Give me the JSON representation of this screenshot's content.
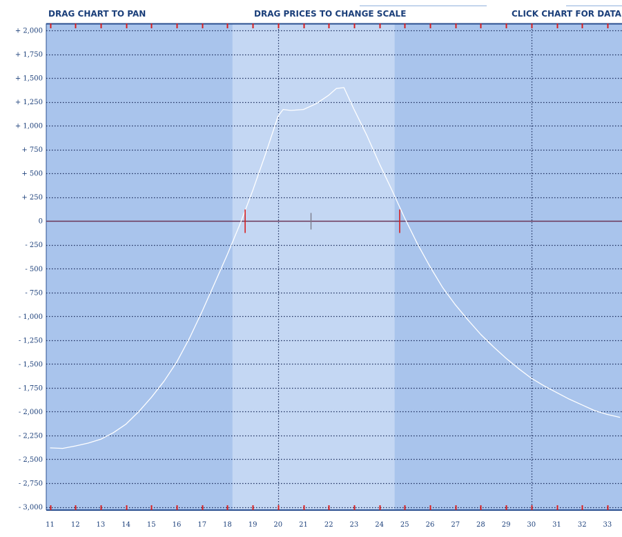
{
  "toolbar": {
    "pan_hint": "DRAG CHART TO PAN",
    "scale_hint": "DRAG PRICES TO CHANGE SCALE",
    "data_hint": "CLICK CHART FOR DATA"
  },
  "colors": {
    "outer_region": "#a9c4ec",
    "inner_region": "#c4d7f3",
    "grid": "#1a2b5a",
    "payoff_line": "#ffffff",
    "zero_line": "#6a3355",
    "tick_red": "#d81e1e",
    "hint_text": "#1b3f7a"
  },
  "chart_data": {
    "type": "line",
    "title": "",
    "xlabel": "",
    "ylabel": "",
    "xlim": [
      11,
      33.5
    ],
    "ylim": [
      -3000,
      2000
    ],
    "x_ticks": [
      11,
      12,
      13,
      14,
      15,
      16,
      17,
      18,
      19,
      20,
      21,
      22,
      23,
      24,
      25,
      26,
      27,
      28,
      29,
      30,
      31,
      32,
      33
    ],
    "x_tick_labels": [
      "11",
      "12",
      "13",
      "14",
      "15",
      "16",
      "17",
      "18",
      "19",
      "20",
      "21",
      "22",
      "23",
      "24",
      "25",
      "26",
      "27",
      "28",
      "29",
      "30",
      "31",
      "32",
      "33"
    ],
    "y_ticks": [
      2000,
      1750,
      1500,
      1250,
      1000,
      750,
      500,
      250,
      0,
      -250,
      -500,
      -750,
      -1000,
      -1250,
      -1500,
      -1750,
      -2000,
      -2250,
      -2500,
      -2750,
      -3000
    ],
    "y_tick_labels": [
      "+ 2,000",
      "+ 1,750",
      "+ 1,500",
      "+ 1,250",
      "+ 1,000",
      "+ 750",
      "+ 500",
      "+ 250",
      "0",
      "- 250",
      "- 500",
      "- 750",
      "- 1,000",
      "- 1,250",
      "- 1,500",
      "- 1,750",
      "- 2,000",
      "- 2,250",
      "- 2,500",
      "- 2,750",
      "- 3,000"
    ],
    "grid": true,
    "vertical_markers_x": [
      20,
      30
    ],
    "inner_region_x": [
      18.2,
      24.6
    ],
    "breakeven_markers_x": [
      18.7,
      24.8
    ],
    "current_price_marker_x": 21.3,
    "series": [
      {
        "x": [
          11,
          11.5,
          12,
          12.5,
          13,
          13.5,
          14,
          14.5,
          15,
          15.5,
          16,
          16.5,
          17,
          17.5,
          18,
          18.5,
          19,
          19.5,
          20,
          20.2,
          20.5,
          21,
          21.5,
          22,
          22.3,
          22.6,
          23,
          23.5,
          24,
          24.5,
          25,
          25.5,
          26,
          26.5,
          27,
          27.5,
          28,
          28.5,
          29,
          29.5,
          30,
          30.5,
          31,
          31.5,
          32,
          32.5,
          33,
          33.5
        ],
        "y": [
          -2380,
          -2385,
          -2360,
          -2330,
          -2290,
          -2220,
          -2130,
          -2000,
          -1850,
          -1680,
          -1480,
          -1230,
          -950,
          -650,
          -350,
          -30,
          320,
          700,
          1100,
          1170,
          1160,
          1170,
          1230,
          1320,
          1390,
          1400,
          1170,
          900,
          600,
          320,
          30,
          -240,
          -480,
          -700,
          -880,
          -1040,
          -1190,
          -1320,
          -1440,
          -1550,
          -1650,
          -1730,
          -1800,
          -1870,
          -1930,
          -1990,
          -2030,
          -2060
        ]
      }
    ]
  }
}
